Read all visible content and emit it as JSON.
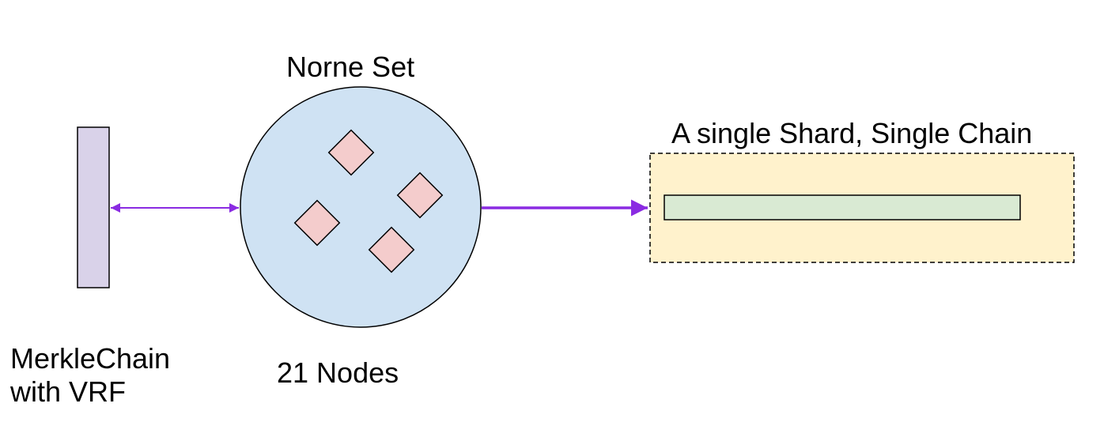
{
  "labels": {
    "norne_set": "Norne Set",
    "nodes_count": "21 Nodes",
    "merkle_line1": "MerkleChain",
    "merkle_line2": "with VRF",
    "shard": "A single Shard, Single Chain"
  },
  "colors": {
    "merkle_bar_fill": "#d9d2e9",
    "circle_fill": "#cfe2f3",
    "node_fill": "#f4cccc",
    "shard_box_fill": "#fff2cc",
    "chain_bar_fill": "#d9ead3",
    "arrow": "#8a2be2",
    "stroke": "#000000"
  }
}
